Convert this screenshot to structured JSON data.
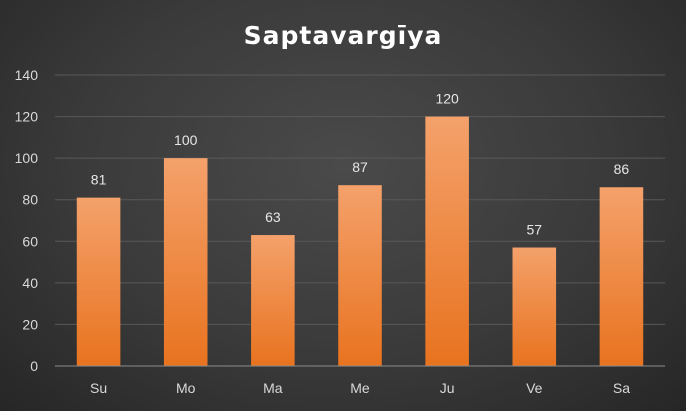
{
  "chart_data": {
    "type": "bar",
    "title": "Saptavargīya",
    "categories": [
      "Su",
      "Mo",
      "Ma",
      "Me",
      "Ju",
      "Ve",
      "Sa"
    ],
    "values": [
      81,
      100,
      63,
      87,
      120,
      57,
      86
    ],
    "ylim": [
      0,
      140
    ],
    "yticks": [
      0,
      20,
      40,
      60,
      80,
      100,
      120,
      140
    ],
    "xlabel": "",
    "ylabel": "",
    "grid": true,
    "legend": "none",
    "data_labels": true,
    "bar_color_top": "#f4a16b",
    "bar_color_bottom": "#e8731f",
    "background_color": "#3c3c3c"
  }
}
